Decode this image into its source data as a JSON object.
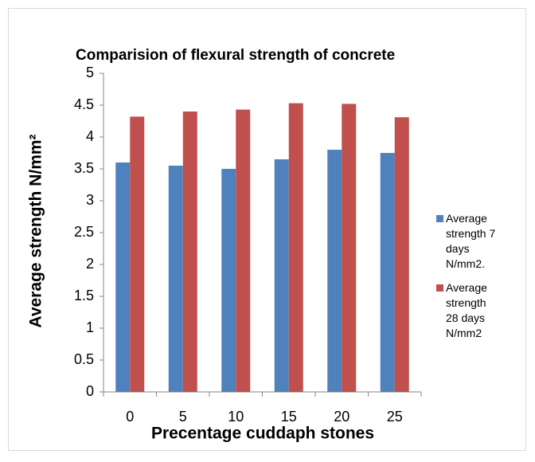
{
  "chart_data": {
    "type": "bar",
    "title": "Comparision of flexural strength of concrete",
    "y_label": "Average strength N/mm²",
    "x_label": "Precentage cuddaph stones",
    "categories": [
      "0",
      "5",
      "10",
      "15",
      "20",
      "25"
    ],
    "series": [
      {
        "name": "Average strength 7 days N/mm2.",
        "color": "#4f81bd",
        "values": [
          3.6,
          3.55,
          3.5,
          3.65,
          3.8,
          3.75
        ]
      },
      {
        "name": "Average strength 28 days N/mm2",
        "color": "#c0504d",
        "values": [
          4.32,
          4.4,
          4.43,
          4.53,
          4.52,
          4.31
        ]
      }
    ],
    "ylim": [
      0,
      5
    ],
    "yticks": [
      0,
      0.5,
      1,
      1.5,
      2,
      2.5,
      3,
      3.5,
      4,
      4.5,
      5
    ],
    "grid": false,
    "legend": "right"
  }
}
